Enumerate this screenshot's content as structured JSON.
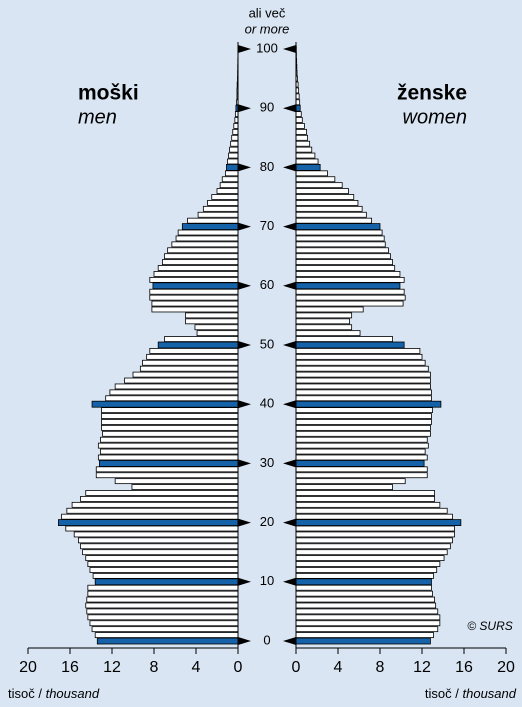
{
  "chart_data": {
    "type": "population-pyramid",
    "top_label": [
      "ali več",
      "or more"
    ],
    "left_title": [
      "moški",
      "men"
    ],
    "right_title": [
      "ženske",
      "women"
    ],
    "credit": "© SURS",
    "x_label": [
      "tisoč / ",
      "thousand"
    ],
    "xlim": [
      0,
      20
    ],
    "xticks": [
      0,
      4,
      8,
      12,
      16,
      20
    ],
    "highlight_color": "#1562a8",
    "categories": [
      0,
      null,
      null,
      null,
      null,
      null,
      null,
      null,
      null,
      null,
      10,
      null,
      null,
      null,
      null,
      null,
      null,
      null,
      null,
      null,
      20,
      null,
      null,
      null,
      null,
      null,
      null,
      null,
      null,
      null,
      30,
      null,
      null,
      null,
      null,
      null,
      null,
      null,
      null,
      null,
      40,
      null,
      null,
      null,
      null,
      null,
      null,
      null,
      null,
      null,
      50,
      null,
      null,
      null,
      null,
      null,
      null,
      null,
      null,
      null,
      60,
      null,
      null,
      null,
      null,
      null,
      null,
      null,
      null,
      null,
      70,
      null,
      null,
      null,
      null,
      null,
      null,
      null,
      null,
      null,
      80,
      null,
      null,
      null,
      null,
      null,
      null,
      null,
      null,
      null,
      90,
      null,
      null,
      null,
      null,
      null,
      null,
      null,
      null,
      null,
      100
    ],
    "series": [
      {
        "side": "left",
        "color": "#ffffff",
        "values": [
          13.4,
          13.6,
          13.9,
          14.1,
          14.3,
          14.4,
          14.5,
          14.4,
          14.3,
          14.3,
          13.6,
          13.8,
          14.1,
          14.3,
          14.5,
          14.8,
          15.0,
          15.2,
          15.6,
          16.4,
          17.1,
          16.8,
          16.3,
          15.8,
          15.0,
          14.5,
          10.1,
          11.7,
          13.5,
          13.5,
          13.2,
          13.3,
          13.1,
          13.3,
          13.1,
          12.9,
          13.0,
          13.0,
          13.0,
          13.0,
          13.9,
          12.6,
          12.2,
          11.7,
          10.8,
          10.0,
          9.3,
          9.1,
          8.7,
          8.4,
          7.6,
          7.0,
          3.9,
          4.1,
          5.0,
          5.0,
          8.2,
          8.2,
          8.4,
          8.4,
          8.1,
          8.4,
          8.0,
          7.6,
          7.2,
          7.0,
          6.7,
          6.3,
          5.9,
          5.7,
          5.3,
          4.8,
          3.8,
          3.3,
          2.9,
          2.5,
          2.0,
          1.7,
          1.5,
          1.2,
          1.1,
          1.0,
          0.9,
          0.8,
          0.7,
          0.6,
          0.5,
          0.4,
          0.3,
          0.25,
          0.2,
          0.15,
          0.1,
          0.1,
          0.08,
          0.05,
          0.04,
          0.03,
          0.02,
          0.01,
          0.01
        ]
      },
      {
        "side": "right",
        "color": "#ffffff",
        "values": [
          12.8,
          13.1,
          13.5,
          13.7,
          13.7,
          13.5,
          13.3,
          13.2,
          13.0,
          12.9,
          12.9,
          13.1,
          13.4,
          13.7,
          14.1,
          14.4,
          14.7,
          14.9,
          15.1,
          15.1,
          15.7,
          14.9,
          14.4,
          13.7,
          13.2,
          13.2,
          9.2,
          10.4,
          12.5,
          12.5,
          12.2,
          12.5,
          12.3,
          12.6,
          12.5,
          12.8,
          12.8,
          12.9,
          12.9,
          13.0,
          13.8,
          12.9,
          12.9,
          12.8,
          12.8,
          12.8,
          12.6,
          12.3,
          12.0,
          11.8,
          10.3,
          9.2,
          6.1,
          5.3,
          5.1,
          5.3,
          6.4,
          10.2,
          10.4,
          10.3,
          9.9,
          10.3,
          9.9,
          9.4,
          9.2,
          9.0,
          8.8,
          8.5,
          8.4,
          8.2,
          8.0,
          7.2,
          6.7,
          6.3,
          5.9,
          5.5,
          5.0,
          4.4,
          3.7,
          3.0,
          2.3,
          2.1,
          1.8,
          1.5,
          1.3,
          1.1,
          1.0,
          0.8,
          0.6,
          0.5,
          0.4,
          0.35,
          0.3,
          0.25,
          0.2,
          0.15,
          0.1,
          0.08,
          0.06,
          0.04,
          0.03
        ]
      }
    ]
  }
}
